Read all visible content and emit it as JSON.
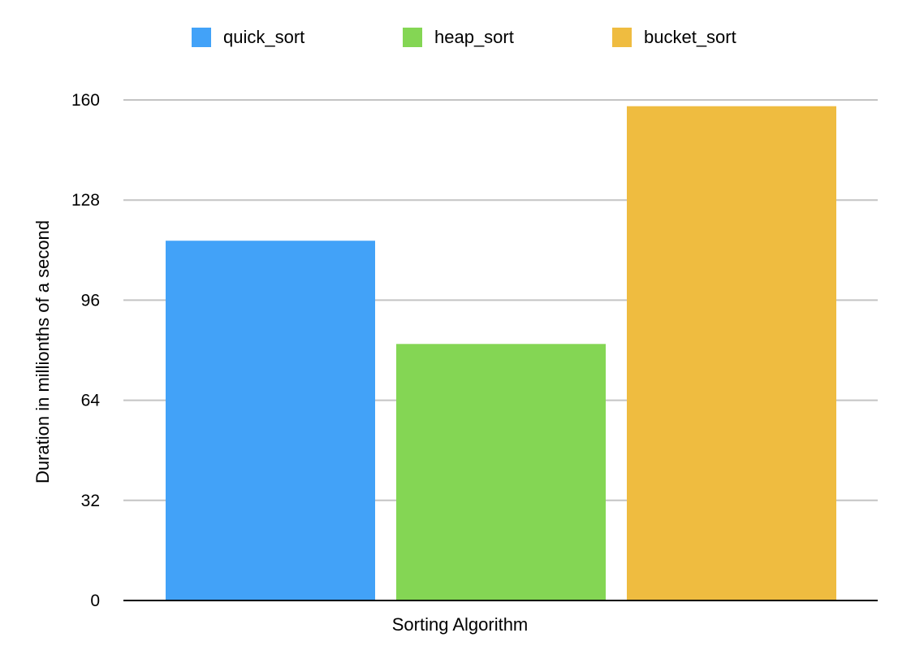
{
  "chart_data": {
    "type": "bar",
    "title": "",
    "xlabel": "Sorting Algorithm",
    "ylabel": "Duration in millionths of a second",
    "categories": [
      ""
    ],
    "series": [
      {
        "name": "quick_sort",
        "values": [
          115
        ],
        "color": "#42a2f8"
      },
      {
        "name": "heap_sort",
        "values": [
          82
        ],
        "color": "#84d654"
      },
      {
        "name": "bucket_sort",
        "values": [
          158
        ],
        "color": "#efbc40"
      }
    ],
    "ylim": [
      0,
      160
    ],
    "yticks": [
      "0",
      "32",
      "64",
      "96",
      "128",
      "160"
    ],
    "grid": true,
    "legend_position": "top"
  }
}
